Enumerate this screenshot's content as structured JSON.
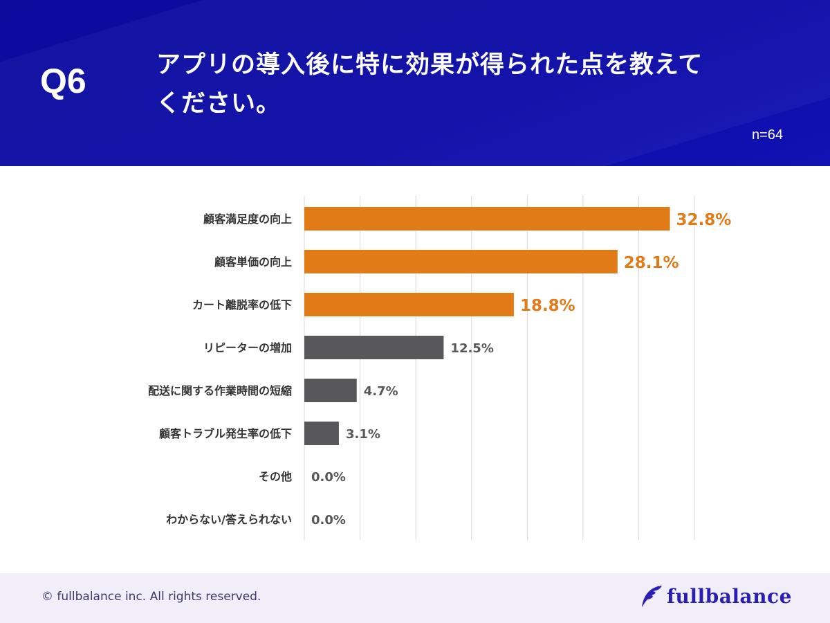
{
  "header": {
    "question_number": "Q6",
    "title": "アプリの導入後に特に効果が得られた点を教えてください。",
    "sample_size": "n=64"
  },
  "footer": {
    "copyright": "© fullbalance inc. All rights reserved.",
    "logo_text": "fullbalance"
  },
  "colors": {
    "header_bg": "#0a0aa6",
    "highlight_bar": "#e07b17",
    "normal_bar": "#58585a",
    "logo": "#2a1fb0"
  },
  "chart_data": {
    "type": "bar",
    "orientation": "horizontal",
    "categories": [
      "顧客満足度の向上",
      "顧客単価の向上",
      "カート離脱率の低下",
      "リピーターの増加",
      "配送に関する作業時間の短縮",
      "顧客トラブル発生率の低下",
      "その他",
      "わからない/答えられない"
    ],
    "values": [
      32.8,
      28.1,
      18.8,
      12.5,
      4.7,
      3.1,
      0.0,
      0.0
    ],
    "labels": [
      "32.8%",
      "28.1%",
      "18.8%",
      "12.5%",
      "4.7%",
      "3.1%",
      "0.0%",
      "0.0%"
    ],
    "highlighted": [
      true,
      true,
      true,
      false,
      false,
      false,
      false,
      false
    ],
    "xlim": [
      0,
      35
    ],
    "grid": true,
    "grid_step": 5
  }
}
